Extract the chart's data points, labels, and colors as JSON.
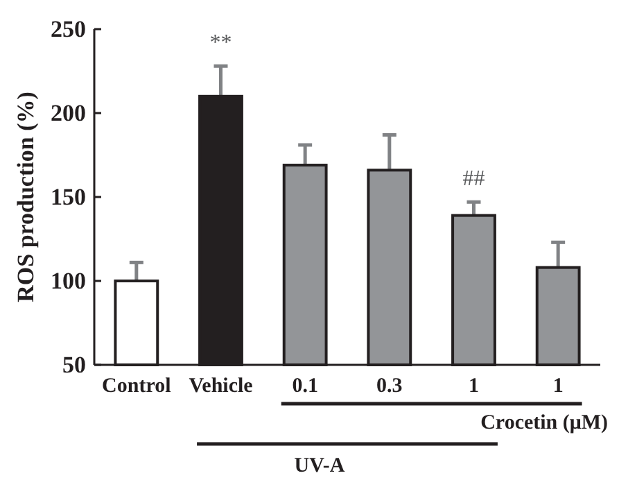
{
  "chart_data": {
    "type": "bar",
    "ylabel": "ROS production (%)",
    "categories": [
      "Control",
      "Vehicle",
      "0.1",
      "0.3",
      "1",
      "1"
    ],
    "values": [
      100,
      210,
      169,
      166,
      139,
      108
    ],
    "errors": [
      11,
      18,
      12,
      21,
      8,
      15
    ],
    "colors": [
      "#ffffff",
      "#231f20",
      "#939598",
      "#939598",
      "#939598",
      "#939598"
    ],
    "ylim": [
      50,
      250
    ],
    "yticks": [
      50,
      100,
      150,
      200,
      250
    ],
    "grid": false,
    "annotations": [
      "**",
      "##",
      "Crocetin (μM)",
      "UV-A"
    ]
  }
}
